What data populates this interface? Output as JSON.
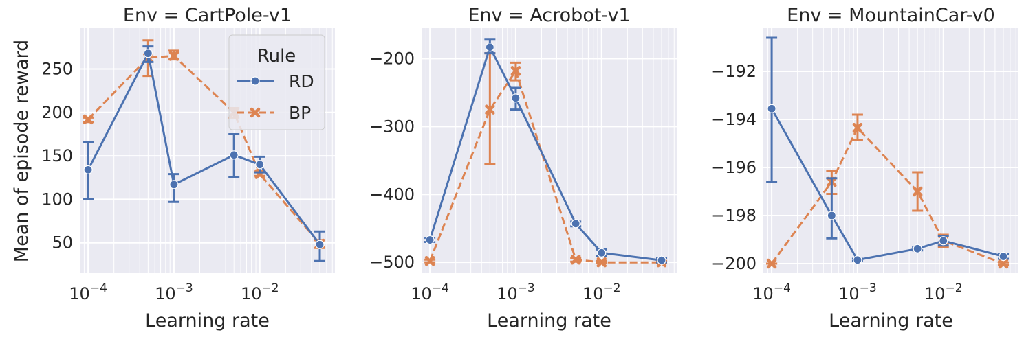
{
  "figure": {
    "ylabel": "Mean of episode reward",
    "legend": {
      "title": "Rule",
      "entries": [
        {
          "label": "RD",
          "color": "#4c72b0",
          "marker": "circle",
          "dash": "solid"
        },
        {
          "label": "BP",
          "color": "#dd8452",
          "marker": "x",
          "dash": "dashed"
        }
      ],
      "placement": "top-right of first panel"
    }
  },
  "chart_data": [
    {
      "type": "line",
      "title": "Env = CartPole-v1",
      "xlabel": "Learning rate",
      "xscale": "log",
      "xlim": [
        8e-05,
        0.075
      ],
      "ylim": [
        15,
        297
      ],
      "yticks": [
        50,
        100,
        150,
        200,
        250
      ],
      "xtick_labels": [
        {
          "value": 0.0001,
          "base": "10",
          "exp": "−4"
        },
        {
          "value": 0.001,
          "base": "10",
          "exp": "−3"
        },
        {
          "value": 0.01,
          "base": "10",
          "exp": "−2"
        }
      ],
      "x": [
        0.0001,
        0.0005,
        0.001,
        0.005,
        0.01,
        0.05
      ],
      "series": [
        {
          "name": "RD",
          "values": [
            134,
            268,
            117,
            151,
            140,
            48
          ],
          "lower": [
            100,
            258,
            97,
            126,
            131,
            29
          ],
          "upper": [
            166,
            276,
            129,
            175,
            149,
            63
          ]
        },
        {
          "name": "BP",
          "values": [
            192,
            263,
            265,
            200,
            129,
            49
          ],
          "lower": [
            189,
            242,
            261,
            194,
            127,
            44
          ],
          "upper": [
            194,
            283,
            271,
            205,
            132,
            53
          ]
        }
      ],
      "grid": true
    },
    {
      "type": "line",
      "title": "Env = Acrobot-v1",
      "xlabel": "Learning rate",
      "xscale": "log",
      "xlim": [
        8e-05,
        0.075
      ],
      "ylim": [
        -516,
        -155
      ],
      "yticks": [
        -500,
        -400,
        -300,
        -200
      ],
      "xtick_labels": [
        {
          "value": 0.0001,
          "base": "10",
          "exp": "−4"
        },
        {
          "value": 0.001,
          "base": "10",
          "exp": "−3"
        },
        {
          "value": 0.01,
          "base": "10",
          "exp": "−2"
        }
      ],
      "x": [
        0.0001,
        0.0005,
        0.001,
        0.005,
        0.01,
        0.05
      ],
      "series": [
        {
          "name": "RD",
          "values": [
            -467,
            -183,
            -258,
            -443,
            -486,
            -497
          ],
          "lower": [
            -470,
            -192,
            -275,
            -447,
            -491,
            -500
          ],
          "upper": [
            -464,
            -172,
            -243,
            -440,
            -481,
            -494
          ]
        },
        {
          "name": "BP",
          "values": [
            -498,
            -275,
            -218,
            -496,
            -500,
            -500
          ],
          "lower": [
            -500,
            -355,
            -232,
            -499,
            -501,
            -501
          ],
          "upper": [
            -496,
            -192,
            -206,
            -494,
            -498,
            -498
          ]
        }
      ],
      "grid": true
    },
    {
      "type": "line",
      "title": "Env = MountainCar-v0",
      "xlabel": "Learning rate",
      "xscale": "log",
      "xlim": [
        8e-05,
        0.075
      ],
      "ylim": [
        -200.4,
        -190.2
      ],
      "yticks": [
        -200,
        -198,
        -196,
        -194,
        -192
      ],
      "xtick_labels": [
        {
          "value": 0.0001,
          "base": "10",
          "exp": "−4"
        },
        {
          "value": 0.001,
          "base": "10",
          "exp": "−3"
        },
        {
          "value": 0.01,
          "base": "10",
          "exp": "−2"
        }
      ],
      "x": [
        0.0001,
        0.0005,
        0.001,
        0.005,
        0.01,
        0.05
      ],
      "series": [
        {
          "name": "RD",
          "values": [
            -193.55,
            -198.0,
            -199.85,
            -199.38,
            -199.05,
            -199.7
          ],
          "lower": [
            -196.6,
            -198.95,
            -199.9,
            -199.45,
            -199.25,
            -199.8
          ],
          "upper": [
            -190.6,
            -196.45,
            -199.8,
            -199.3,
            -198.85,
            -199.6
          ]
        },
        {
          "name": "BP",
          "values": [
            -200.0,
            -196.6,
            -194.35,
            -197.0,
            -199.05,
            -200.0
          ],
          "lower": [
            -200.0,
            -197.1,
            -194.85,
            -197.8,
            -199.3,
            -200.05
          ],
          "upper": [
            -200.0,
            -196.15,
            -193.8,
            -196.2,
            -198.8,
            -199.95
          ]
        }
      ],
      "grid": true
    }
  ]
}
